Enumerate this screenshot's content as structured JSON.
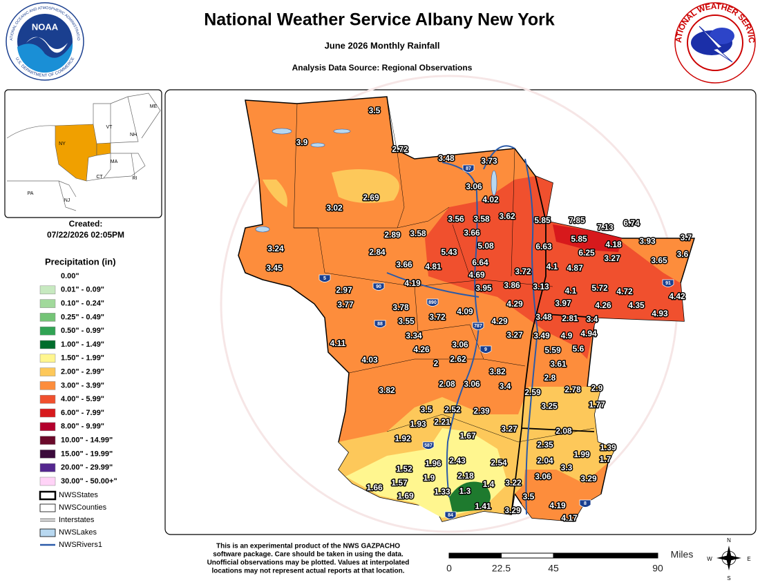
{
  "header": {
    "title": "National Weather Service Albany New York",
    "subtitle": "June 2026 Monthly Rainfall",
    "source": "Analysis Data Source: Regional Observations"
  },
  "logos": {
    "noaa": "NOAA",
    "noaa_ring_top": "NATIONAL OCEANIC AND ATMOSPHERIC ADMINISTRATION",
    "noaa_ring_bottom": "U.S. DEPARTMENT OF COMMERCE",
    "nws_ring": "NATIONAL WEATHER SERVICE"
  },
  "inset": {
    "states": [
      "ME",
      "VT",
      "NH",
      "NY",
      "MA",
      "CT",
      "RI",
      "PA",
      "NJ"
    ]
  },
  "created": {
    "label": "Created:",
    "datetime": "07/22/2026 02:05PM"
  },
  "legend": {
    "title": "Precipitation (in)",
    "classes": [
      {
        "label": "0.00\"",
        "color": "#ffffff"
      },
      {
        "label": "0.01\" - 0.09\"",
        "color": "#c7e9c0"
      },
      {
        "label": "0.10\" - 0.24\"",
        "color": "#a1d99b"
      },
      {
        "label": "0.25\" - 0.49\"",
        "color": "#74c476"
      },
      {
        "label": "0.50\" - 0.99\"",
        "color": "#31a354"
      },
      {
        "label": "1.00\" - 1.49\"",
        "color": "#006d2c"
      },
      {
        "label": "1.50\" - 1.99\"",
        "color": "#fff68f"
      },
      {
        "label": "2.00\" - 2.99\"",
        "color": "#fdc85a"
      },
      {
        "label": "3.00\" - 3.99\"",
        "color": "#fd8d3c"
      },
      {
        "label": "4.00\" - 5.99\"",
        "color": "#f0502e"
      },
      {
        "label": "6.00\" - 7.99\"",
        "color": "#d7191c"
      },
      {
        "label": "8.00\" - 9.99\"",
        "color": "#b3002d"
      },
      {
        "label": "10.00\" - 14.99\"",
        "color": "#6a0a2a"
      },
      {
        "label": "15.00\" - 19.99\"",
        "color": "#3b0a3b"
      },
      {
        "label": "20.00\" - 29.99\"",
        "color": "#54278f"
      },
      {
        "label": "30.00\" - 50.00+\"",
        "color": "#ffd3f7"
      }
    ],
    "layers": [
      "NWSStates",
      "NWSCounties",
      "Interstates",
      "NWSLakes",
      "NWSRivers1"
    ]
  },
  "observations": [
    3.5,
    3.9,
    2.72,
    3.48,
    3.73,
    3.06,
    4.02,
    3.02,
    2.69,
    3.56,
    3.58,
    3.62,
    5.85,
    7.85,
    7.13,
    6.74,
    3.66,
    2.89,
    3.58,
    5.43,
    5.08,
    6.63,
    5.85,
    4.18,
    3.93,
    3.7,
    3.24,
    2.84,
    6.64,
    6.25,
    3.27,
    3.6,
    3.66,
    4.81,
    3.45,
    4.69,
    3.72,
    4.1,
    4.87,
    3.65,
    4.19,
    2.97,
    3.95,
    3.86,
    3.13,
    4.1,
    5.72,
    4.72,
    4.42,
    3.77,
    3.78,
    4.09,
    4.29,
    3.97,
    4.26,
    4.35,
    3.72,
    3.48,
    2.81,
    3.4,
    4.93,
    3.55,
    4.29,
    3.34,
    3.27,
    3.49,
    4.9,
    4.94,
    4.11,
    3.06,
    4.26,
    5.59,
    5.6,
    4.03,
    2,
    2.62,
    3.61,
    3.82,
    2.8,
    2.08,
    3.06,
    3.4,
    2.9,
    3.82,
    2.59,
    2.78,
    1.77,
    3.25,
    3.5,
    2.52,
    2.39,
    1.93,
    2.21,
    3.27,
    2.08,
    1.92,
    1.67,
    2.35,
    1.39,
    1.99,
    1.7,
    1.96,
    2.43,
    2.54,
    2.04,
    1.52,
    3.3,
    2.18,
    3.06,
    3.29,
    1.57,
    1.9,
    1.4,
    3.22,
    1.66,
    1.33,
    1.3,
    1.69,
    3.5,
    4.19,
    1.41,
    3.29,
    4.17
  ],
  "interstates": [
    "87",
    "5",
    "90",
    "890",
    "88",
    "787",
    "9",
    "91",
    "587",
    "84",
    "8"
  ],
  "footer": {
    "note": [
      "This is an experimental product of the NWS GAZPACHO",
      "software package. Care should be taken in using the data.",
      "Unofficial observations may be plotted. Values at interpolated",
      "locations may not represent actual reports at that location."
    ]
  },
  "scale": {
    "unit": "Miles",
    "ticks": [
      0,
      22.5,
      45,
      90
    ]
  },
  "compass": {
    "n": "N",
    "e": "E",
    "s": "S",
    "w": "W"
  }
}
